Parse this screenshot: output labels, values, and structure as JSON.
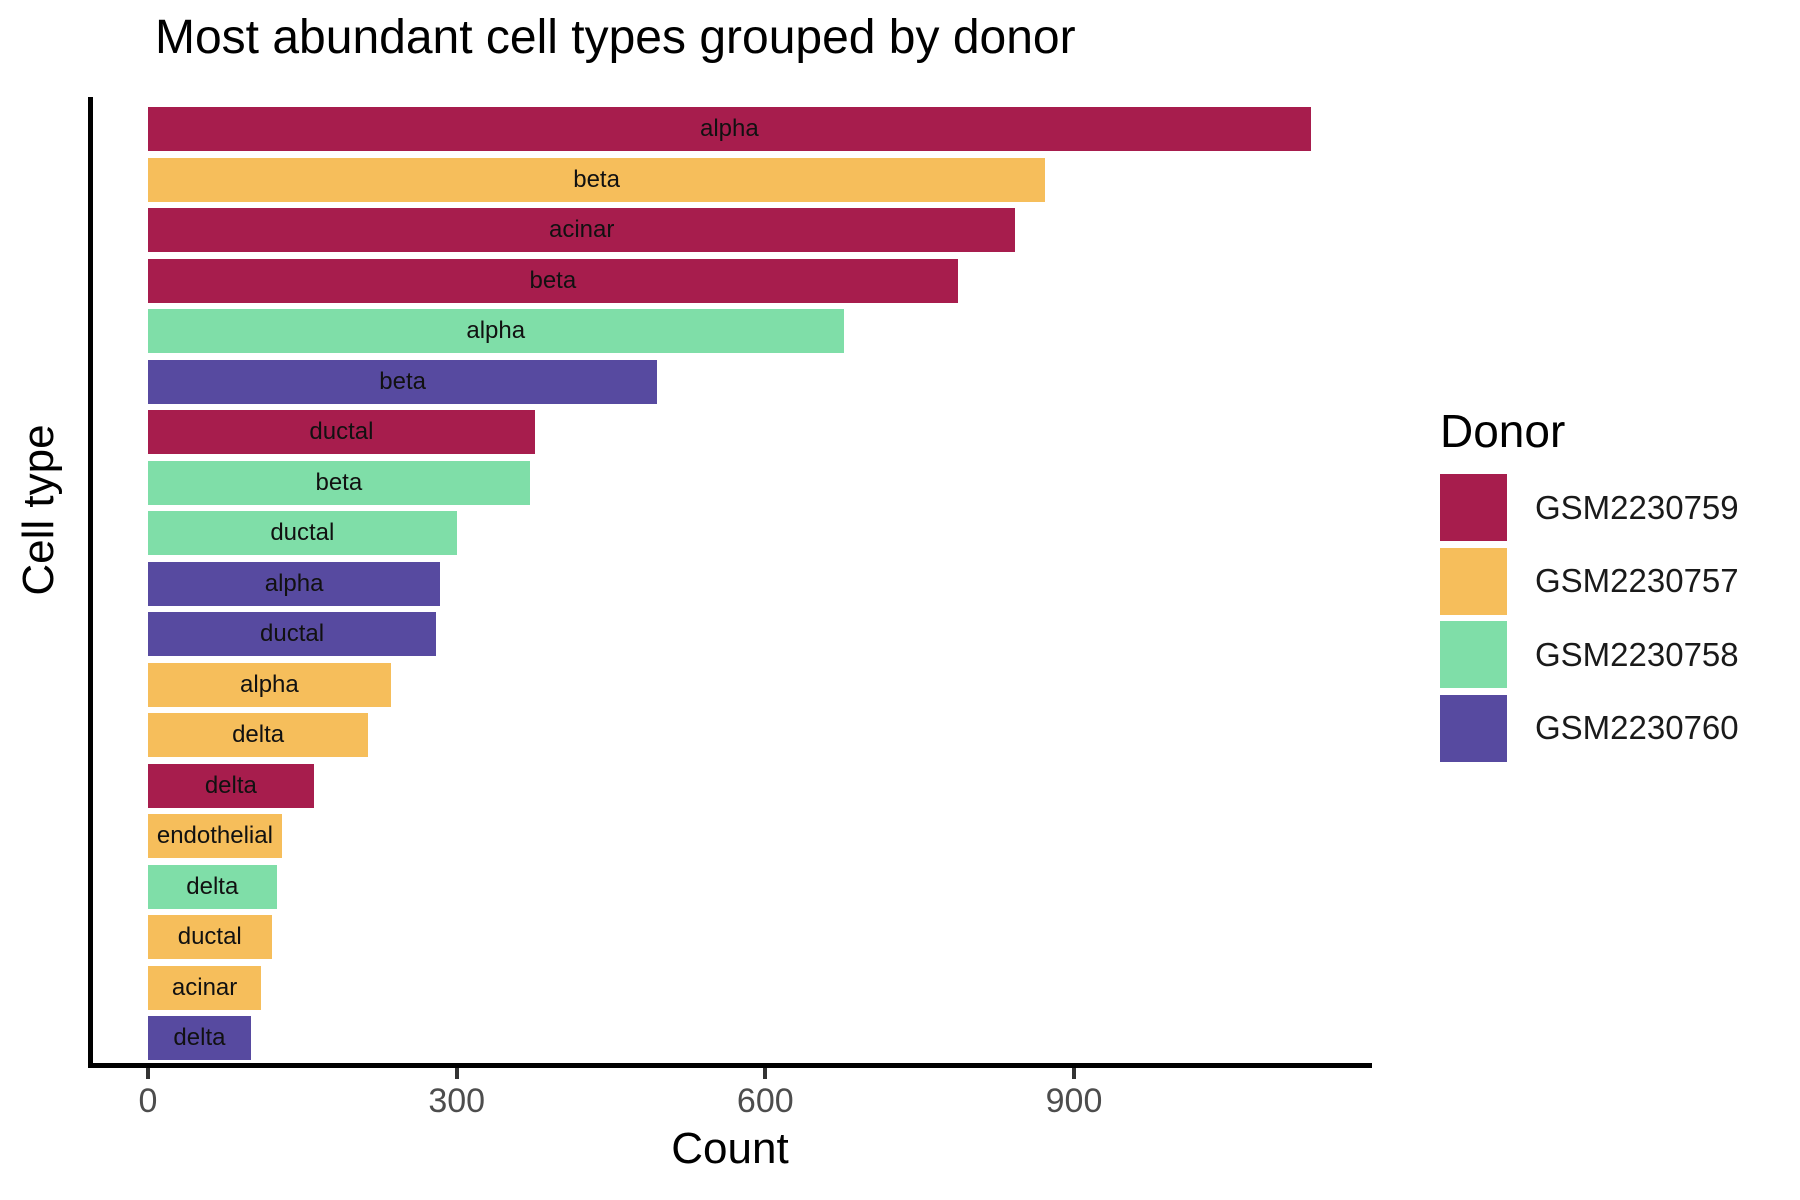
{
  "chart_data": {
    "type": "bar",
    "orientation": "horizontal",
    "title": "Most abundant cell types grouped by donor",
    "xlabel": "Count",
    "ylabel": "Cell type",
    "x_ticks": [
      0,
      300,
      600,
      900
    ],
    "xlim": [
      0,
      1240
    ],
    "grid": false,
    "legend_title": "Donor",
    "legend_position": "right",
    "donors": [
      {
        "id": "GSM2230759",
        "color": "#A71D4D"
      },
      {
        "id": "GSM2230757",
        "color": "#F6BE5B"
      },
      {
        "id": "GSM2230758",
        "color": "#7FDEA8"
      },
      {
        "id": "GSM2230760",
        "color": "#574AA0"
      }
    ],
    "bars": [
      {
        "cell_type": "alpha",
        "donor": "GSM2230759",
        "count": 1130
      },
      {
        "cell_type": "beta",
        "donor": "GSM2230757",
        "count": 872
      },
      {
        "cell_type": "acinar",
        "donor": "GSM2230759",
        "count": 843
      },
      {
        "cell_type": "beta",
        "donor": "GSM2230759",
        "count": 787
      },
      {
        "cell_type": "alpha",
        "donor": "GSM2230758",
        "count": 676
      },
      {
        "cell_type": "beta",
        "donor": "GSM2230760",
        "count": 495
      },
      {
        "cell_type": "ductal",
        "donor": "GSM2230759",
        "count": 376
      },
      {
        "cell_type": "beta",
        "donor": "GSM2230758",
        "count": 371
      },
      {
        "cell_type": "ductal",
        "donor": "GSM2230758",
        "count": 300
      },
      {
        "cell_type": "alpha",
        "donor": "GSM2230760",
        "count": 284
      },
      {
        "cell_type": "ductal",
        "donor": "GSM2230760",
        "count": 280
      },
      {
        "cell_type": "alpha",
        "donor": "GSM2230757",
        "count": 236
      },
      {
        "cell_type": "delta",
        "donor": "GSM2230757",
        "count": 214
      },
      {
        "cell_type": "delta",
        "donor": "GSM2230759",
        "count": 161
      },
      {
        "cell_type": "endothelial",
        "donor": "GSM2230757",
        "count": 130
      },
      {
        "cell_type": "delta",
        "donor": "GSM2230758",
        "count": 125
      },
      {
        "cell_type": "ductal",
        "donor": "GSM2230757",
        "count": 120
      },
      {
        "cell_type": "acinar",
        "donor": "GSM2230757",
        "count": 110
      },
      {
        "cell_type": "delta",
        "donor": "GSM2230760",
        "count": 100
      }
    ]
  }
}
